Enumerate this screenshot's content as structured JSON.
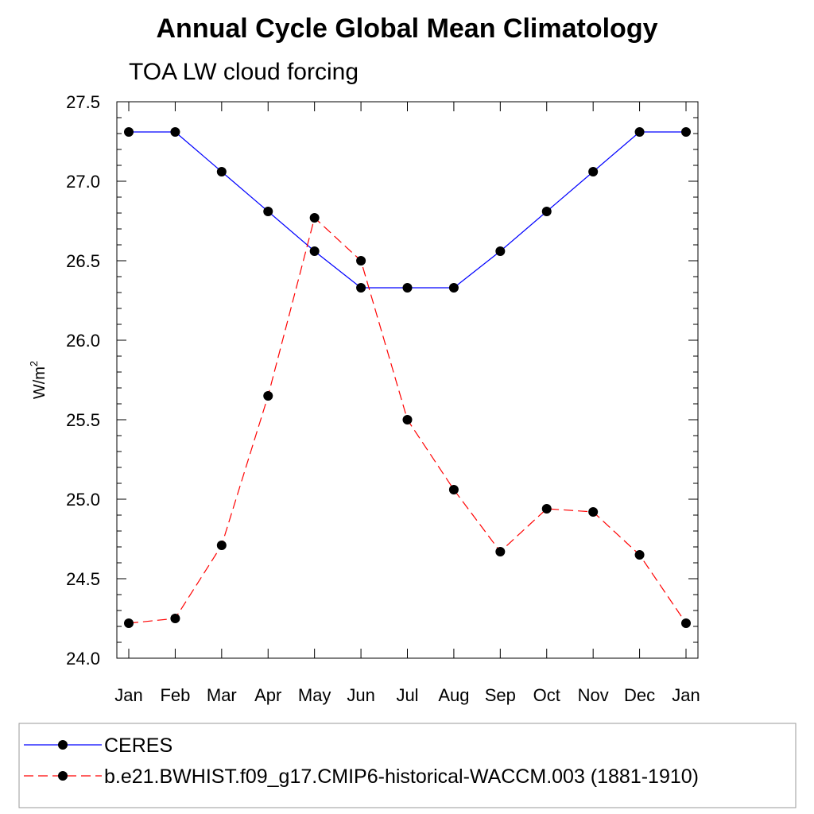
{
  "chart_data": {
    "type": "line",
    "title": "Annual Cycle Global Mean Climatology",
    "subtitle": "TOA LW cloud forcing",
    "ylabel": "W/m",
    "ylabel_superscript": "2",
    "xlabel": "",
    "categories": [
      "Jan",
      "Feb",
      "Mar",
      "Apr",
      "May",
      "Jun",
      "Jul",
      "Aug",
      "Sep",
      "Oct",
      "Nov",
      "Dec",
      "Jan"
    ],
    "ylim": [
      24.0,
      27.5
    ],
    "yticks": [
      "24.0",
      "24.5",
      "25.0",
      "25.5",
      "26.0",
      "26.5",
      "27.0",
      "27.5"
    ],
    "grid": false,
    "legend_placement": "bottom",
    "series": [
      {
        "name": "CERES",
        "color": "#0000ff",
        "line_style": "solid",
        "marker": "filled-circle",
        "values": [
          27.31,
          27.31,
          27.06,
          26.81,
          26.56,
          26.33,
          26.33,
          26.33,
          26.56,
          26.81,
          27.06,
          27.31,
          27.31
        ]
      },
      {
        "name": "b.e21.BWHIST.f09_g17.CMIP6-historical-WACCM.003 (1881-1910)",
        "color": "#ff0000",
        "line_style": "dashed",
        "marker": "filled-circle",
        "values": [
          24.22,
          24.25,
          24.71,
          25.65,
          26.77,
          26.5,
          25.5,
          25.06,
          24.67,
          24.94,
          24.92,
          24.65,
          24.22
        ]
      }
    ]
  }
}
